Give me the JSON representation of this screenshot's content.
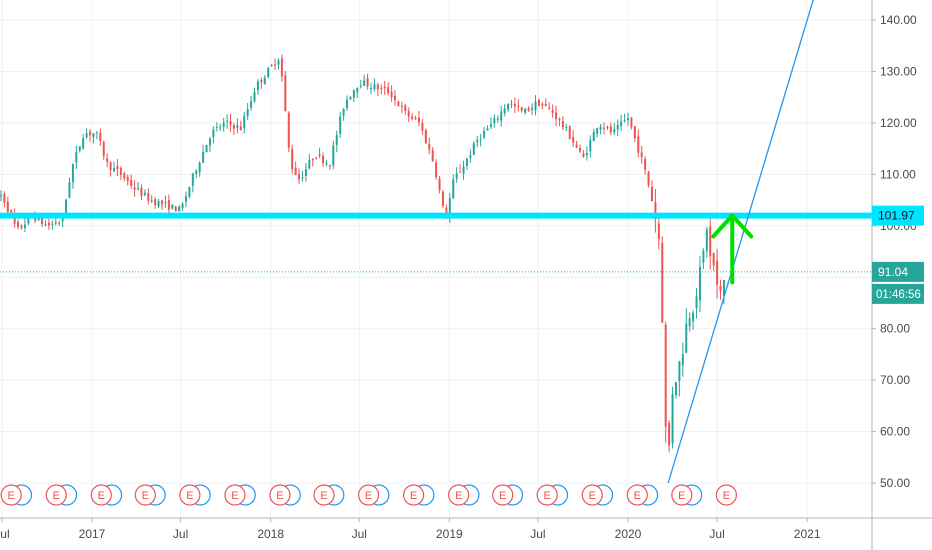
{
  "chart_data": {
    "type": "candlestick",
    "y_axis": {
      "side": "right",
      "ticks": [
        "140.00",
        "130.00",
        "120.00",
        "110.00",
        "100.00",
        "90.00",
        "80.00",
        "70.00",
        "60.00",
        "50.00"
      ],
      "range": [
        43,
        146
      ]
    },
    "x_axis": {
      "ticks": [
        "Jul",
        "2017",
        "Jul",
        "2018",
        "Jul",
        "2019",
        "Jul",
        "2020",
        "Jul",
        "2021"
      ]
    },
    "price_path": [
      [
        "2016-06-15",
        105
      ],
      [
        "2016-07-01",
        106
      ],
      [
        "2016-08-01",
        99
      ],
      [
        "2016-09-01",
        102
      ],
      [
        "2016-10-01",
        100
      ],
      [
        "2016-11-01",
        101
      ],
      [
        "2016-11-20",
        111
      ],
      [
        "2016-12-15",
        118
      ],
      [
        "2017-01-10",
        118
      ],
      [
        "2017-02-01",
        112
      ],
      [
        "2017-03-01",
        110
      ],
      [
        "2017-04-01",
        107
      ],
      [
        "2017-05-01",
        105
      ],
      [
        "2017-06-01",
        104
      ],
      [
        "2017-07-01",
        103
      ],
      [
        "2017-08-01",
        111
      ],
      [
        "2017-09-01",
        118
      ],
      [
        "2017-10-01",
        120
      ],
      [
        "2017-11-01",
        119
      ],
      [
        "2017-12-01",
        127
      ],
      [
        "2018-01-20",
        133
      ],
      [
        "2018-02-10",
        112
      ],
      [
        "2018-03-01",
        109
      ],
      [
        "2018-04-01",
        114
      ],
      [
        "2018-05-01",
        112
      ],
      [
        "2018-06-01",
        124
      ],
      [
        "2018-07-01",
        128
      ],
      [
        "2018-08-01",
        127
      ],
      [
        "2018-09-01",
        126
      ],
      [
        "2018-10-01",
        122
      ],
      [
        "2018-11-01",
        120
      ],
      [
        "2018-12-01",
        112
      ],
      [
        "2018-12-24",
        101
      ],
      [
        "2019-01-10",
        109
      ],
      [
        "2019-02-01",
        112
      ],
      [
        "2019-03-01",
        117
      ],
      [
        "2019-04-01",
        120
      ],
      [
        "2019-05-01",
        124
      ],
      [
        "2019-06-01",
        122
      ],
      [
        "2019-07-01",
        124
      ],
      [
        "2019-08-01",
        122
      ],
      [
        "2019-09-01",
        118
      ],
      [
        "2019-10-01",
        113
      ],
      [
        "2019-11-01",
        120
      ],
      [
        "2019-12-01",
        118
      ],
      [
        "2020-01-01",
        121
      ],
      [
        "2020-02-01",
        112
      ],
      [
        "2020-02-20",
        105
      ],
      [
        "2020-03-05",
        97
      ],
      [
        "2020-03-12",
        80
      ],
      [
        "2020-03-16",
        63
      ],
      [
        "2020-03-23",
        54
      ],
      [
        "2020-04-01",
        68
      ],
      [
        "2020-04-20",
        75
      ],
      [
        "2020-05-01",
        82
      ],
      [
        "2020-05-15",
        85
      ],
      [
        "2020-06-01",
        93
      ],
      [
        "2020-06-10",
        100
      ],
      [
        "2020-06-15",
        94
      ],
      [
        "2020-06-25",
        92
      ],
      [
        "2020-07-01",
        88
      ],
      [
        "2020-07-07",
        86
      ],
      [
        "2020-07-14",
        89
      ],
      [
        "2020-07-21",
        91
      ]
    ],
    "horizontal_levels": [
      {
        "label": "101.97",
        "value": 101.97,
        "color": "#00e5ff",
        "style": "thick"
      },
      {
        "label": "91.04",
        "value": 91.04,
        "color": "#26a69a",
        "style": "dotted"
      }
    ],
    "countdown_label": "01:46:56",
    "trendline": {
      "from": [
        "2020-03-23",
        50
      ],
      "to": [
        "2021-01-20",
        146
      ],
      "color": "#2196f3"
    },
    "arrow": {
      "color": "#00e000",
      "x": "2020-08-01",
      "from_value": 89,
      "to_value": 102
    },
    "earnings_markers": {
      "label": "E",
      "dates": [
        "2016-07-20",
        "2016-10-20",
        "2017-01-20",
        "2017-04-20",
        "2017-07-20",
        "2017-10-20",
        "2018-01-20",
        "2018-04-20",
        "2018-07-20",
        "2018-10-20",
        "2019-01-20",
        "2019-04-20",
        "2019-07-20",
        "2019-10-20",
        "2020-01-20",
        "2020-04-20",
        "2020-07-20"
      ],
      "dividend_dates": [
        "2016-08-10",
        "2016-11-10",
        "2017-02-10",
        "2017-05-10",
        "2017-08-10",
        "2017-11-10",
        "2018-02-10",
        "2018-05-10",
        "2018-08-10",
        "2018-11-10",
        "2019-02-10",
        "2019-05-10",
        "2019-08-10",
        "2019-11-10",
        "2020-02-10",
        "2020-05-10"
      ]
    },
    "colors": {
      "up": "#26a69a",
      "down": "#ef5350",
      "grid": "#eef0f3",
      "axis_text": "#4a4a4a"
    }
  }
}
